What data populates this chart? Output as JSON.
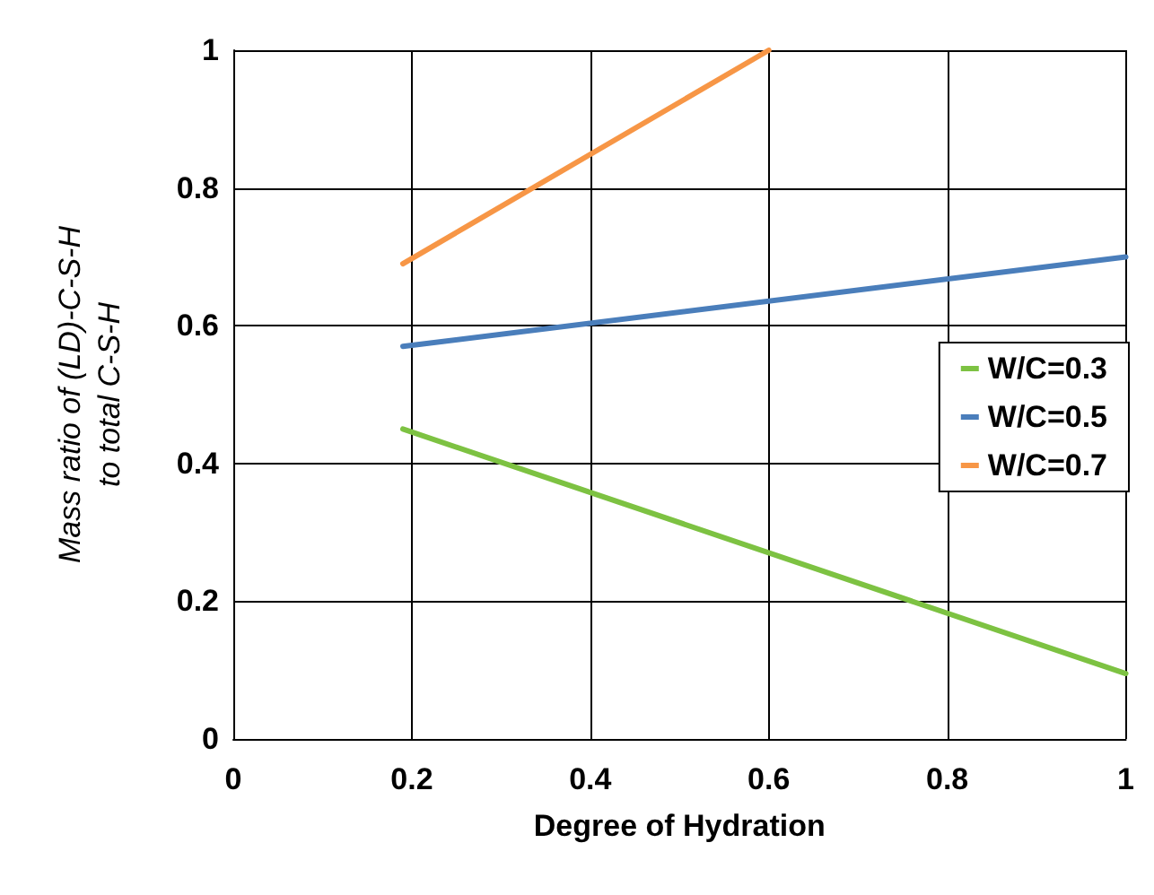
{
  "chart_data": {
    "type": "line",
    "xlabel": "Degree of Hydration",
    "ylabel": "Mass ratio of (LD)-C-S-H\nto total C-S-H",
    "x": [
      0.19,
      1
    ],
    "series": [
      {
        "name": "W/C=0.3",
        "color": "#7dc242",
        "values": [
          0.45,
          0.095
        ]
      },
      {
        "name": "W/C=0.5",
        "color": "#4a7ebb",
        "values": [
          0.57,
          0.7
        ]
      },
      {
        "name": "W/C=0.7",
        "color": "#f79646",
        "x": [
          0.19,
          0.6
        ],
        "values": [
          0.69,
          1.0
        ]
      }
    ],
    "xlim": [
      0,
      1
    ],
    "ylim": [
      0,
      1
    ],
    "xticks": [
      0,
      0.2,
      0.4,
      0.6,
      0.8,
      1
    ],
    "yticks": [
      0,
      0.2,
      0.4,
      0.6,
      0.8,
      1
    ],
    "grid": true,
    "legend": "right",
    "marker": "none",
    "line_style": "solid"
  }
}
